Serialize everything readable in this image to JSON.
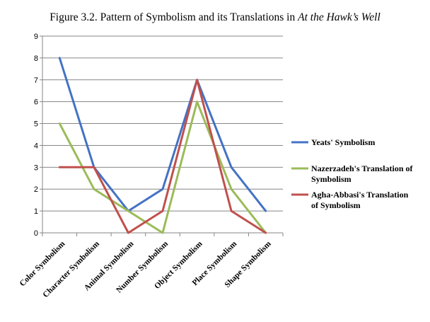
{
  "title_main": "Figure 3.2.  Pattern of Symbolism and its Translations in ",
  "title_emph": "At the Hawk’s Well",
  "chart_data": {
    "type": "line",
    "categories": [
      "Color Symbolism",
      "Character Symbolism",
      "Animal Symbolism",
      "Number Symbolism",
      "Object Symbolism",
      "Place Symbolism",
      "Shape Symbolism"
    ],
    "ylim": [
      0,
      9
    ],
    "yticks": [
      0,
      1,
      2,
      3,
      4,
      5,
      6,
      7,
      8,
      9
    ],
    "grid": true,
    "legend_position": "right",
    "series": [
      {
        "name": "Yeats' Symbolism",
        "legend_lines": [
          "Yeats' Symbolism"
        ],
        "color": "#4472c4",
        "values": [
          8,
          3,
          1,
          2,
          7,
          3,
          1
        ]
      },
      {
        "name": "Nazerzadeh's Translation of Symbolism",
        "legend_lines": [
          "Nazerzadeh's Translation of",
          "Symbolism"
        ],
        "color": "#9bbb59",
        "values": [
          5,
          2,
          1,
          0,
          6,
          2,
          0
        ]
      },
      {
        "name": "Agha-Abbasi's Translation of Symbolism",
        "legend_lines": [
          "Agha-Abbasi's Translation",
          "of Symbolism"
        ],
        "color": "#c0504d",
        "values": [
          3,
          3,
          0,
          1,
          7,
          1,
          0
        ]
      }
    ]
  }
}
